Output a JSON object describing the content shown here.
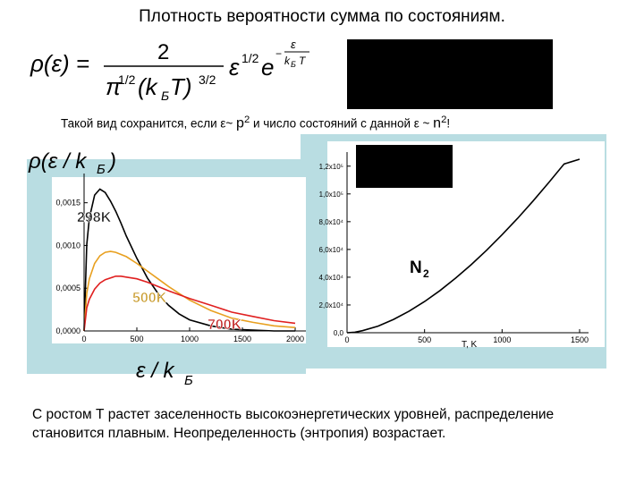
{
  "title": "Плотность вероятности  сумма по состояниям.",
  "formula": {
    "lhs": "ρ(ε) =",
    "numerator": "2",
    "den_pi": "π",
    "den_pi_exp": "1/2",
    "den_kt": "(k",
    "den_kt_sub": "Б",
    "den_kt_T": "T)",
    "den_kt_exp": "3/2",
    "eps": "ε",
    "eps_exp": "1/2",
    "e": "e",
    "exp_num": "ε",
    "exp_den": "k",
    "exp_den_sub": "Б",
    "exp_den_T": "T",
    "exp_minus": "−"
  },
  "note": {
    "part1": "Такой вид сохранится, если ε~ ",
    "p": "p",
    "p_exp": "2",
    "part2": " и число состояний с данной ε ~ ",
    "n": "n",
    "n_exp": "2",
    "end": "!"
  },
  "left_chart": {
    "ylabel_rho": "ρ(ε / k",
    "ylabel_sub": "Б",
    "ylabel_close": ")",
    "xlabel_main": "ε / k",
    "xlabel_sub": "Б",
    "ytick_labels": [
      "0,0015",
      "0,0010",
      "0,0005",
      "0,0000"
    ],
    "xtick_labels": [
      "0",
      "500",
      "1000",
      "1500",
      "2000"
    ],
    "series_labels": [
      "298K",
      "500K",
      "700K"
    ],
    "colors": {
      "298K": "#000000",
      "500K": "#e8a020",
      "700K": "#e02020",
      "label_298": "#1a1a1a",
      "label_500": "#c89a2a",
      "label_700": "#c02020"
    }
  },
  "right_chart": {
    "ytick_labels": [
      "1,2x10⁵",
      "1,0x10⁵",
      "8,0x10⁴",
      "6,0x10⁴",
      "4,0x10⁴",
      "2,0x10⁴",
      "0,0"
    ],
    "xtick_labels": [
      "0",
      "500",
      "1000",
      "1500"
    ],
    "xlabel": "T, K",
    "molecule": "N",
    "molecule_sub": "2"
  },
  "chart_data": [
    {
      "type": "line",
      "xlabel": "ε / kБ",
      "ylabel": "ρ(ε / kБ)",
      "xlim": [
        0,
        2000
      ],
      "ylim": [
        0,
        0.0018
      ],
      "series": [
        {
          "name": "298K",
          "x": [
            0,
            25,
            50,
            100,
            150,
            200,
            250,
            300,
            350,
            400,
            500,
            600,
            700,
            800,
            900,
            1000,
            1200,
            1400,
            1600,
            1800,
            2000
          ],
          "values": [
            0,
            0.00101,
            0.00132,
            0.00159,
            0.00166,
            0.00162,
            0.00152,
            0.0014,
            0.00126,
            0.00111,
            0.00085,
            0.00062,
            0.00044,
            0.0003,
            0.0002,
            0.00013,
            6e-05,
            2e-05,
            1e-05,
            0,
            0
          ]
        },
        {
          "name": "500K",
          "x": [
            0,
            25,
            50,
            100,
            150,
            200,
            250,
            300,
            400,
            500,
            600,
            700,
            800,
            900,
            1000,
            1200,
            1400,
            1600,
            1800,
            2000
          ],
          "values": [
            0,
            0.00044,
            0.00061,
            0.00079,
            0.00088,
            0.00092,
            0.00093,
            0.00092,
            0.00087,
            0.00079,
            0.0007,
            0.00061,
            0.00052,
            0.00044,
            0.00036,
            0.00024,
            0.00015,
            0.0001,
            6e-05,
            4e-05
          ]
        },
        {
          "name": "700K",
          "x": [
            0,
            25,
            50,
            100,
            150,
            200,
            300,
            350,
            400,
            500,
            600,
            700,
            800,
            1000,
            1200,
            1400,
            1600,
            1800,
            2000
          ],
          "values": [
            0,
            0.00027,
            0.00037,
            0.00049,
            0.00056,
            0.0006,
            0.00064,
            0.00064,
            0.00063,
            0.00061,
            0.00057,
            0.00052,
            0.00047,
            0.00038,
            0.0003,
            0.00022,
            0.00017,
            0.00012,
            9e-05
          ]
        }
      ]
    },
    {
      "type": "line",
      "xlabel": "T, K",
      "xlim": [
        0,
        1500
      ],
      "ylim": [
        0,
        125000
      ],
      "series": [
        {
          "name": "N2",
          "x": [
            0,
            50,
            100,
            200,
            300,
            400,
            500,
            600,
            700,
            800,
            900,
            1000,
            1100,
            1200,
            1300,
            1400,
            1500
          ],
          "values": [
            0,
            400,
            1500,
            4800,
            9600,
            15500,
            22500,
            30400,
            39300,
            49000,
            59400,
            70600,
            82400,
            94900,
            108000,
            121600,
            125000
          ]
        }
      ]
    }
  ],
  "conclusion": "С ростом Т растет заселенность высокоэнергетических уровней, распределение становится плавным. Неопределенность  (энтропия) возрастает."
}
